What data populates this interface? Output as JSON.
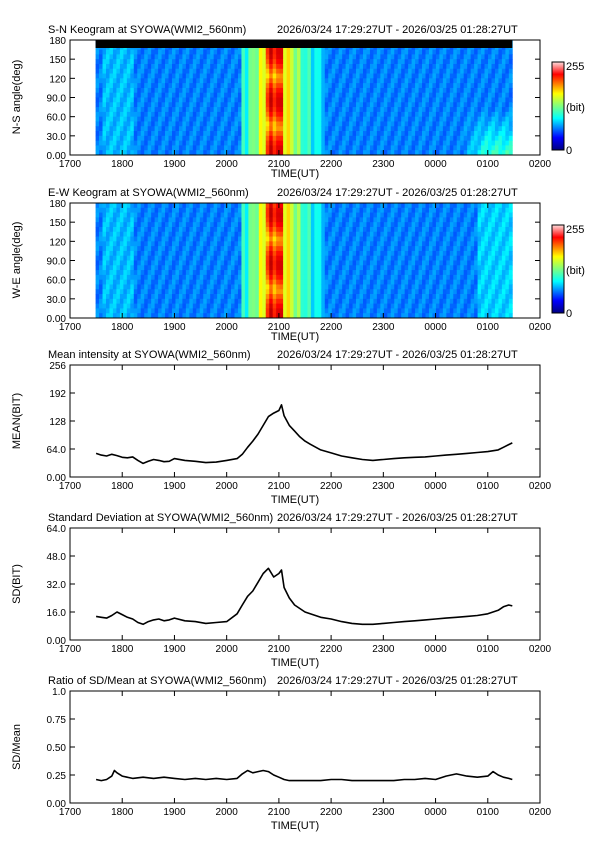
{
  "chart_data": [
    {
      "type": "heatmap",
      "title": "S-N Keogram at SYOWA(WMI2_560nm)",
      "time_range": "2026/03/24 17:29:27UT - 2026/03/25 01:28:27UT",
      "xlabel": "TIME(UT)",
      "ylabel": "N-S angle(deg)",
      "x_ticks": [
        "1700",
        "1800",
        "1900",
        "2000",
        "2100",
        "2200",
        "2300",
        "0000",
        "0100",
        "0200"
      ],
      "y_ticks": [
        "0.00",
        "30.0",
        "60.0",
        "90.0",
        "120",
        "150",
        "180"
      ],
      "xlim": [
        17.0,
        26.0
      ],
      "ylim": [
        0,
        180
      ],
      "data_xlim": [
        17.49,
        25.47
      ],
      "colorbar": {
        "min_label": "0",
        "max_label": "255",
        "unit": "(bit)"
      }
    },
    {
      "type": "heatmap",
      "title": "E-W Keogram at SYOWA(WMI2_560nm)",
      "time_range": "2026/03/24 17:29:27UT - 2026/03/25 01:28:27UT",
      "xlabel": "TIME(UT)",
      "ylabel": "W-E angle(deg)",
      "x_ticks": [
        "1700",
        "1800",
        "1900",
        "2000",
        "2100",
        "2200",
        "2300",
        "0000",
        "0100",
        "0200"
      ],
      "y_ticks": [
        "0.00",
        "30.0",
        "60.0",
        "90.0",
        "120",
        "150",
        "180"
      ],
      "xlim": [
        17.0,
        26.0
      ],
      "ylim": [
        0,
        180
      ],
      "data_xlim": [
        17.49,
        25.47
      ],
      "colorbar": {
        "min_label": "0",
        "max_label": "255",
        "unit": "(bit)"
      }
    },
    {
      "type": "line",
      "title": "Mean intensity at SYOWA(WMI2_560nm)",
      "time_range": "2026/03/24 17:29:27UT - 2026/03/25 01:28:27UT",
      "xlabel": "TIME(UT)",
      "ylabel": "MEAN(BIT)",
      "x_ticks": [
        "1700",
        "1800",
        "1900",
        "2000",
        "2100",
        "2200",
        "2300",
        "0000",
        "0100",
        "0200"
      ],
      "y_ticks": [
        "0.00",
        "64.0",
        "128",
        "192",
        "256"
      ],
      "xlim": [
        17.0,
        26.0
      ],
      "ylim": [
        0,
        256
      ],
      "x": [
        17.5,
        17.6,
        17.7,
        17.8,
        17.9,
        18.0,
        18.1,
        18.2,
        18.3,
        18.4,
        18.5,
        18.6,
        18.7,
        18.8,
        18.9,
        19.0,
        19.2,
        19.4,
        19.6,
        19.8,
        20.0,
        20.2,
        20.3,
        20.4,
        20.5,
        20.6,
        20.7,
        20.8,
        20.9,
        21.0,
        21.05,
        21.1,
        21.2,
        21.3,
        21.4,
        21.5,
        21.6,
        21.8,
        22.0,
        22.2,
        22.4,
        22.6,
        22.8,
        23.0,
        23.2,
        23.4,
        23.6,
        23.8,
        24.0,
        24.2,
        24.4,
        24.6,
        24.8,
        25.0,
        25.2,
        25.3,
        25.4,
        25.47
      ],
      "y": [
        54,
        50,
        48,
        52,
        49,
        45,
        44,
        46,
        38,
        31,
        36,
        40,
        38,
        35,
        36,
        42,
        38,
        36,
        33,
        34,
        38,
        42,
        52,
        68,
        82,
        98,
        118,
        138,
        146,
        152,
        165,
        140,
        118,
        105,
        92,
        82,
        75,
        62,
        55,
        48,
        44,
        40,
        38,
        40,
        42,
        44,
        45,
        46,
        48,
        50,
        52,
        54,
        56,
        58,
        62,
        68,
        74,
        78
      ]
    },
    {
      "type": "line",
      "title": "Standard Deviation at SYOWA(WMI2_560nm)",
      "time_range": "2026/03/24 17:29:27UT - 2026/03/25 01:28:27UT",
      "xlabel": "TIME(UT)",
      "ylabel": "SD(BIT)",
      "x_ticks": [
        "1700",
        "1800",
        "1900",
        "2000",
        "2100",
        "2200",
        "2300",
        "0000",
        "0100",
        "0200"
      ],
      "y_ticks": [
        "0.00",
        "16.0",
        "32.0",
        "48.0",
        "64.0"
      ],
      "xlim": [
        17.0,
        26.0
      ],
      "ylim": [
        0,
        64
      ],
      "x": [
        17.5,
        17.6,
        17.7,
        17.8,
        17.9,
        18.0,
        18.1,
        18.2,
        18.3,
        18.4,
        18.5,
        18.6,
        18.7,
        18.8,
        18.9,
        19.0,
        19.2,
        19.4,
        19.6,
        19.8,
        20.0,
        20.2,
        20.3,
        20.4,
        20.5,
        20.6,
        20.7,
        20.8,
        20.9,
        21.0,
        21.05,
        21.1,
        21.2,
        21.3,
        21.4,
        21.5,
        21.6,
        21.8,
        22.0,
        22.2,
        22.4,
        22.6,
        22.8,
        23.0,
        23.2,
        23.4,
        23.6,
        23.8,
        24.0,
        24.2,
        24.4,
        24.6,
        24.8,
        25.0,
        25.2,
        25.3,
        25.4,
        25.47
      ],
      "y": [
        13.5,
        13.0,
        12.5,
        14.0,
        16.0,
        14.5,
        13.0,
        12.0,
        10.0,
        9.0,
        10.5,
        11.5,
        12.0,
        11.0,
        11.5,
        12.5,
        11.0,
        10.5,
        9.5,
        10.0,
        10.5,
        15.0,
        20.0,
        25.0,
        28.0,
        33.0,
        38.0,
        41.0,
        36.0,
        38.0,
        40.0,
        30.0,
        24.0,
        20.0,
        18.0,
        16.0,
        15.0,
        13.0,
        12.0,
        10.5,
        9.5,
        9.0,
        9.0,
        9.5,
        10.0,
        10.5,
        11.0,
        11.5,
        12.0,
        12.5,
        13.0,
        13.5,
        14.0,
        15.0,
        17.0,
        19.0,
        20.0,
        19.5
      ]
    },
    {
      "type": "line",
      "title": "Ratio of SD/Mean at SYOWA(WMI2_560nm)",
      "time_range": "2026/03/24 17:29:27UT - 2026/03/25 01:28:27UT",
      "xlabel": "TIME(UT)",
      "ylabel": "SD/Mean",
      "x_ticks": [
        "1700",
        "1800",
        "1900",
        "2000",
        "2100",
        "2200",
        "2300",
        "0000",
        "0100",
        "0200"
      ],
      "y_ticks": [
        "0.00",
        "0.25",
        "0.50",
        "0.75",
        "1.0"
      ],
      "xlim": [
        17.0,
        26.0
      ],
      "ylim": [
        0,
        1
      ],
      "x": [
        17.5,
        17.6,
        17.7,
        17.8,
        17.85,
        17.9,
        18.0,
        18.2,
        18.4,
        18.6,
        18.8,
        19.0,
        19.2,
        19.4,
        19.6,
        19.8,
        20.0,
        20.2,
        20.3,
        20.4,
        20.5,
        20.6,
        20.7,
        20.8,
        20.9,
        21.0,
        21.1,
        21.2,
        21.4,
        21.6,
        21.8,
        22.0,
        22.2,
        22.4,
        22.6,
        22.8,
        23.0,
        23.2,
        23.4,
        23.6,
        23.8,
        24.0,
        24.2,
        24.4,
        24.6,
        24.8,
        25.0,
        25.1,
        25.2,
        25.3,
        25.4,
        25.47
      ],
      "y": [
        0.21,
        0.2,
        0.21,
        0.24,
        0.29,
        0.27,
        0.24,
        0.22,
        0.23,
        0.22,
        0.23,
        0.22,
        0.21,
        0.22,
        0.21,
        0.22,
        0.21,
        0.22,
        0.26,
        0.29,
        0.27,
        0.28,
        0.29,
        0.28,
        0.25,
        0.23,
        0.21,
        0.2,
        0.2,
        0.2,
        0.2,
        0.21,
        0.21,
        0.2,
        0.2,
        0.2,
        0.2,
        0.2,
        0.21,
        0.21,
        0.22,
        0.21,
        0.24,
        0.26,
        0.24,
        0.23,
        0.24,
        0.28,
        0.25,
        0.23,
        0.22,
        0.21
      ]
    }
  ]
}
